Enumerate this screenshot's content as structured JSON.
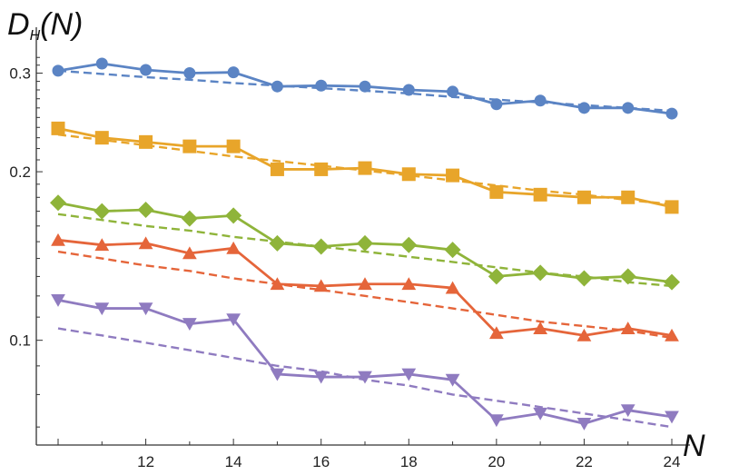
{
  "chart_data": {
    "type": "line",
    "title": "",
    "ylabel_main": "D",
    "ylabel_sub": "H",
    "ylabel_arg": "(N)",
    "xlabel": "N",
    "yscale": "log",
    "xlim": [
      10,
      24
    ],
    "ylim": [
      0.065,
      0.33
    ],
    "xticks": [
      12,
      14,
      16,
      18,
      20,
      22,
      24
    ],
    "xtick_labels": [
      "12",
      "14",
      "16",
      "18",
      "20",
      "22",
      "24"
    ],
    "yticks": [
      0.1,
      0.2,
      0.3
    ],
    "ytick_labels": [
      "0.1",
      "0.2",
      "0.3"
    ],
    "grid": false,
    "legend": "none",
    "x": [
      10,
      11,
      12,
      13,
      14,
      15,
      16,
      17,
      18,
      19,
      20,
      21,
      22,
      23,
      24
    ],
    "series": [
      {
        "marker": "circle",
        "color": "#5b84c4",
        "values": [
          0.303,
          0.312,
          0.304,
          0.3,
          0.301,
          0.284,
          0.285,
          0.284,
          0.28,
          0.278,
          0.264,
          0.268,
          0.26,
          0.26,
          0.254
        ],
        "fit": [
          0.303,
          0.299,
          0.295,
          0.292,
          0.288,
          0.285,
          0.282,
          0.279,
          0.276,
          0.272,
          0.269,
          0.266,
          0.263,
          0.26,
          0.257
        ]
      },
      {
        "marker": "square",
        "color": "#e8a52a",
        "values": [
          0.239,
          0.23,
          0.226,
          0.222,
          0.222,
          0.202,
          0.202,
          0.203,
          0.198,
          0.197,
          0.184,
          0.182,
          0.18,
          0.18,
          0.173
        ],
        "fit": [
          0.233,
          0.228,
          0.223,
          0.218,
          0.213,
          0.209,
          0.205,
          0.201,
          0.197,
          0.193,
          0.189,
          0.185,
          0.182,
          0.178,
          0.175
        ]
      },
      {
        "marker": "diamond",
        "color": "#8fb43a",
        "values": [
          0.176,
          0.17,
          0.171,
          0.165,
          0.167,
          0.149,
          0.147,
          0.149,
          0.148,
          0.145,
          0.13,
          0.132,
          0.129,
          0.13,
          0.127
        ],
        "fit": [
          0.168,
          0.164,
          0.16,
          0.157,
          0.153,
          0.15,
          0.147,
          0.144,
          0.141,
          0.138,
          0.135,
          0.132,
          0.13,
          0.127,
          0.125
        ]
      },
      {
        "marker": "triangle-up",
        "color": "#e5653a",
        "values": [
          0.151,
          0.148,
          0.149,
          0.143,
          0.146,
          0.126,
          0.125,
          0.126,
          0.126,
          0.124,
          0.103,
          0.105,
          0.102,
          0.105,
          0.102
        ],
        "fit": [
          0.144,
          0.14,
          0.136,
          0.133,
          0.129,
          0.126,
          0.123,
          0.12,
          0.117,
          0.114,
          0.111,
          0.108,
          0.106,
          0.104,
          0.101
        ]
      },
      {
        "marker": "triangle-down",
        "color": "#8f7bc0",
        "values": [
          0.118,
          0.114,
          0.114,
          0.107,
          0.109,
          0.087,
          0.086,
          0.086,
          0.087,
          0.085,
          0.072,
          0.074,
          0.071,
          0.075,
          0.073
        ],
        "fit": [
          0.105,
          0.102,
          0.099,
          0.096,
          0.093,
          0.09,
          0.088,
          0.085,
          0.083,
          0.08,
          0.078,
          0.076,
          0.074,
          0.072,
          0.07
        ]
      }
    ]
  }
}
